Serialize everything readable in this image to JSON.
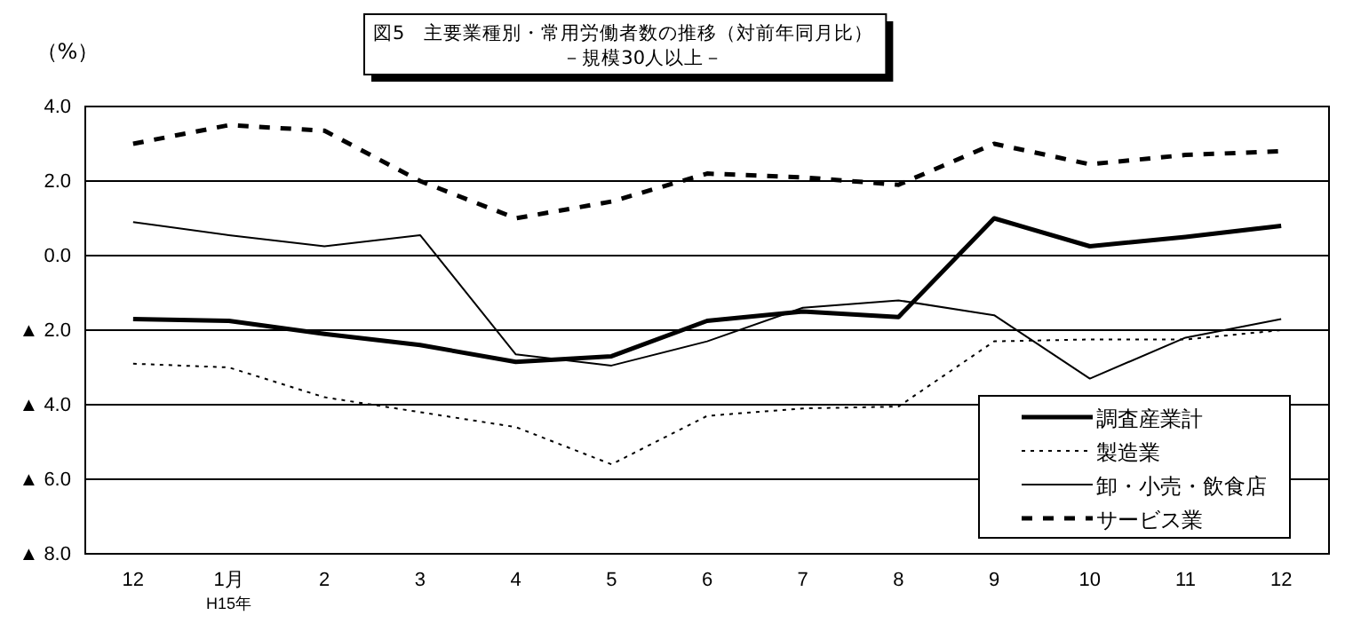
{
  "chart_data": {
    "type": "line",
    "title": "図5　主要業種別・常用労働者数の推移（対前年同月比）",
    "subtitle": "－規模30人以上－",
    "ylabel": "（%）",
    "categories": [
      "12",
      "1月$_{H15年}$",
      "2",
      "3",
      "4",
      "5",
      "6",
      "7",
      "8",
      "9",
      "10",
      "11",
      "12"
    ],
    "ylim": [
      -8,
      4
    ],
    "yticks": [
      {
        "value": 4,
        "label": "4.0"
      },
      {
        "value": 2,
        "label": "2.0"
      },
      {
        "value": 0,
        "label": "0.0"
      },
      {
        "value": -2,
        "label": "▲ 2.0"
      },
      {
        "value": -4,
        "label": "▲ 4.0"
      },
      {
        "value": -6,
        "label": "▲ 6.0"
      },
      {
        "value": -8,
        "label": "▲ 8.0"
      }
    ],
    "grid": "y",
    "legend": "bottom right",
    "marker": "none",
    "series": [
      {
        "name": "調査産業計",
        "color": "#000000",
        "line_style": "solid",
        "values": [
          -1.7,
          -1.75,
          -2.1,
          -2.4,
          -2.85,
          -2.7,
          -1.75,
          -1.5,
          -1.65,
          1.0,
          0.25,
          0.5,
          0.8
        ]
      },
      {
        "name": "製造業",
        "color": "#000000",
        "line_style": "dotted",
        "values": [
          -2.9,
          -3.0,
          -3.8,
          -4.2,
          -4.6,
          -5.6,
          -4.3,
          -4.1,
          -4.05,
          -2.3,
          -2.25,
          -2.25,
          -2.0
        ]
      },
      {
        "name": "卸・小売・飲食店",
        "color": "#000000",
        "line_style": "solid",
        "values": [
          0.9,
          0.55,
          0.25,
          0.55,
          -2.65,
          -2.95,
          -2.3,
          -1.4,
          -1.2,
          -1.6,
          -3.3,
          -2.2,
          -1.7
        ]
      },
      {
        "name": "サービス業",
        "color": "#000000",
        "line_style": "dashed",
        "values": [
          3.0,
          3.5,
          3.35,
          2.0,
          1.0,
          1.45,
          2.2,
          2.1,
          1.9,
          3.0,
          2.45,
          2.7,
          2.8
        ]
      }
    ]
  }
}
